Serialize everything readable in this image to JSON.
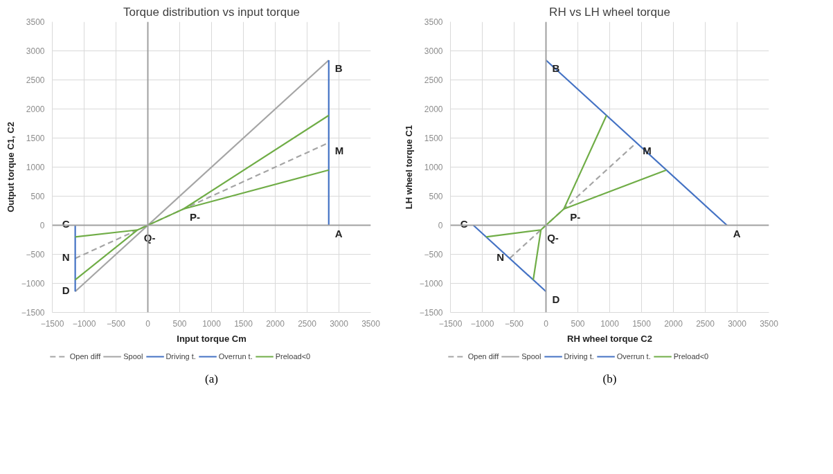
{
  "chart_data": [
    {
      "type": "line",
      "title": "Torque distribution vs input torque",
      "xlabel": "Input torque Cm",
      "ylabel": "Output torque C1, C2",
      "xlim": [
        -1500,
        3500
      ],
      "ylim": [
        -1500,
        3500
      ],
      "xticks": [
        -1500,
        -1000,
        -500,
        0,
        500,
        1000,
        1500,
        2000,
        2500,
        3000,
        3500
      ],
      "yticks": [
        -1500,
        -1000,
        -500,
        0,
        500,
        1000,
        1500,
        2000,
        2500,
        3000,
        3500
      ],
      "grid": true,
      "legend": "bottom",
      "series": [
        {
          "name": "Open diff",
          "color": "#a5a5a5",
          "line_style": "dashed",
          "x": [
            -1140,
            2840
          ],
          "values": [
            -570,
            1420
          ]
        },
        {
          "name": "Spool",
          "color": "#a5a5a5",
          "line_style": "solid",
          "x": [
            -1140,
            2840
          ],
          "values": [
            -1140,
            2840
          ]
        },
        {
          "name": "Driving t.",
          "color": "#4472c4",
          "line_style": "solid",
          "x": [
            2840,
            2840
          ],
          "values": [
            0,
            2840
          ]
        },
        {
          "name": "Overrun t.",
          "color": "#4472c4",
          "line_style": "solid",
          "x": [
            -1140,
            -1140
          ],
          "values": [
            0,
            -1140
          ]
        },
        {
          "name": "Preload<0",
          "color": "#70ad47",
          "line_style": "solid",
          "x": [
            -1140,
            -160,
            560,
            2840,
            null,
            -1140,
            -160,
            560,
            2840
          ],
          "values": [
            -200,
            -80,
            280,
            950,
            null,
            -940,
            -80,
            280,
            1890
          ]
        }
      ],
      "annotations": [
        {
          "text": "A",
          "x": 2840,
          "y": 0
        },
        {
          "text": "B",
          "x": 2840,
          "y": 2840
        },
        {
          "text": "C",
          "x": -1140,
          "y": 0
        },
        {
          "text": "D",
          "x": -1140,
          "y": -1140
        },
        {
          "text": "M",
          "x": 2840,
          "y": 1420
        },
        {
          "text": "N",
          "x": -1140,
          "y": -570
        },
        {
          "text": "P-",
          "x": 560,
          "y": 280
        },
        {
          "text": "Q-",
          "x": -160,
          "y": -80
        },
        "(a)"
      ]
    },
    {
      "type": "line",
      "title": "RH vs LH wheel torque",
      "xlabel": "RH wheel torque C2",
      "ylabel": "LH wheel torque C1",
      "xlim": [
        -1500,
        3500
      ],
      "ylim": [
        -1500,
        3500
      ],
      "xticks": [
        -1500,
        -1000,
        -500,
        0,
        500,
        1000,
        1500,
        2000,
        2500,
        3000,
        3500
      ],
      "yticks": [
        -1500,
        -1000,
        -500,
        0,
        500,
        1000,
        1500,
        2000,
        2500,
        3000,
        3500
      ],
      "grid": true,
      "legend": "bottom",
      "series": [
        {
          "name": "Open diff",
          "color": "#a5a5a5",
          "line_style": "dashed",
          "x": [
            -570,
            1420
          ],
          "values": [
            -570,
            1420
          ]
        },
        {
          "name": "Spool",
          "color": "#a5a5a5",
          "line_style": "solid",
          "x": [
            null
          ],
          "values": [
            null
          ]
        },
        {
          "name": "Driving t.",
          "color": "#4472c4",
          "line_style": "solid",
          "x": [
            0,
            2840
          ],
          "values": [
            2840,
            0
          ]
        },
        {
          "name": "Overrun t.",
          "color": "#4472c4",
          "line_style": "solid",
          "x": [
            -1140,
            0
          ],
          "values": [
            0,
            -1140
          ]
        },
        {
          "name": "Preload<0",
          "color": "#70ad47",
          "line_style": "solid",
          "x": [
            950,
            280,
            1890,
            null,
            280,
            0,
            -80,
            null,
            -940,
            -80,
            -200
          ],
          "values": [
            1890,
            280,
            950,
            null,
            280,
            0,
            -80,
            null,
            -200,
            -80,
            -940
          ]
        }
      ],
      "annotations": [
        {
          "text": "A",
          "x": 2840,
          "y": 0
        },
        {
          "text": "B",
          "x": 0,
          "y": 2840
        },
        {
          "text": "C",
          "x": -1140,
          "y": 0
        },
        {
          "text": "D",
          "x": 0,
          "y": -1140
        },
        {
          "text": "M",
          "x": 1420,
          "y": 1420
        },
        {
          "text": "N",
          "x": -570,
          "y": -570
        },
        {
          "text": "P-",
          "x": 280,
          "y": 280
        },
        {
          "text": "Q-",
          "x": -80,
          "y": -80
        },
        "(b)"
      ]
    }
  ]
}
